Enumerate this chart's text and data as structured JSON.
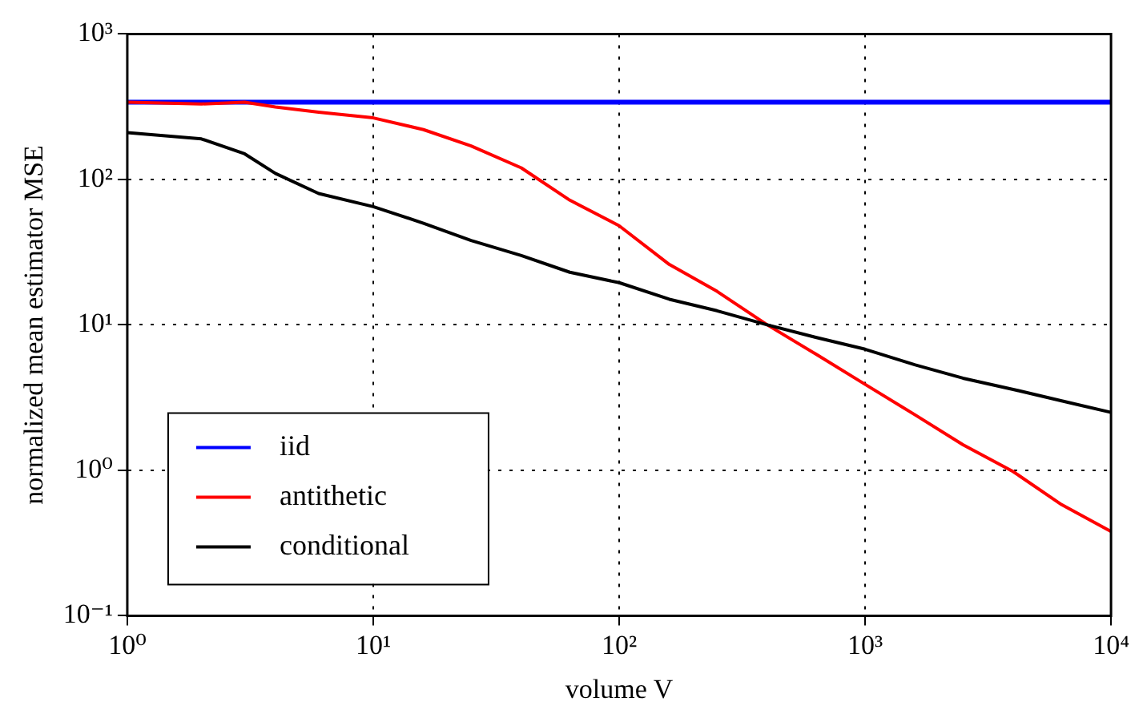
{
  "chart_data": {
    "type": "line",
    "xlabel": "volume V",
    "ylabel": "normalized mean estimator MSE",
    "log": "xy",
    "x": [
      1,
      2,
      3,
      4,
      6,
      10,
      16,
      25,
      40,
      63,
      100,
      160,
      250,
      400,
      630,
      1000,
      1600,
      2500,
      4000,
      6300,
      10000
    ],
    "xlim": [
      1,
      10000
    ],
    "xticks": [
      {
        "value": 1,
        "label": "10⁰"
      },
      {
        "value": 10,
        "label": "10¹"
      },
      {
        "value": 100,
        "label": "10²"
      },
      {
        "value": 1000,
        "label": "10³"
      },
      {
        "value": 10000,
        "label": "10⁴"
      }
    ],
    "ylim": [
      0.1,
      1000
    ],
    "yticks": [
      {
        "value": 0.1,
        "label": "10⁻¹"
      },
      {
        "value": 1,
        "label": "10⁰"
      },
      {
        "value": 10,
        "label": "10¹"
      },
      {
        "value": 100,
        "label": "10²"
      },
      {
        "value": 1000,
        "label": "10³"
      }
    ],
    "grid": true,
    "legend": "bottom left",
    "marker": "none",
    "line_style": "solid",
    "series": [
      {
        "name": "iid",
        "color": "#0000ff",
        "values": [
          340,
          340,
          340,
          340,
          340,
          340,
          340,
          340,
          340,
          340,
          340,
          340,
          340,
          340,
          340,
          340,
          340,
          340,
          340,
          340,
          340
        ]
      },
      {
        "name": "antithetic",
        "color": "#ff0000",
        "values": [
          340,
          330,
          340,
          315,
          290,
          265,
          220,
          170,
          120,
          72,
          48,
          26,
          17,
          10,
          6.3,
          3.9,
          2.4,
          1.5,
          0.98,
          0.58,
          0.38
        ]
      },
      {
        "name": "conditional",
        "color": "#000000",
        "values": [
          210,
          190,
          150,
          110,
          80,
          65,
          50,
          38,
          30,
          23,
          19.5,
          15,
          12.5,
          10,
          8.2,
          6.8,
          5.3,
          4.3,
          3.6,
          3.0,
          2.5
        ]
      }
    ]
  }
}
